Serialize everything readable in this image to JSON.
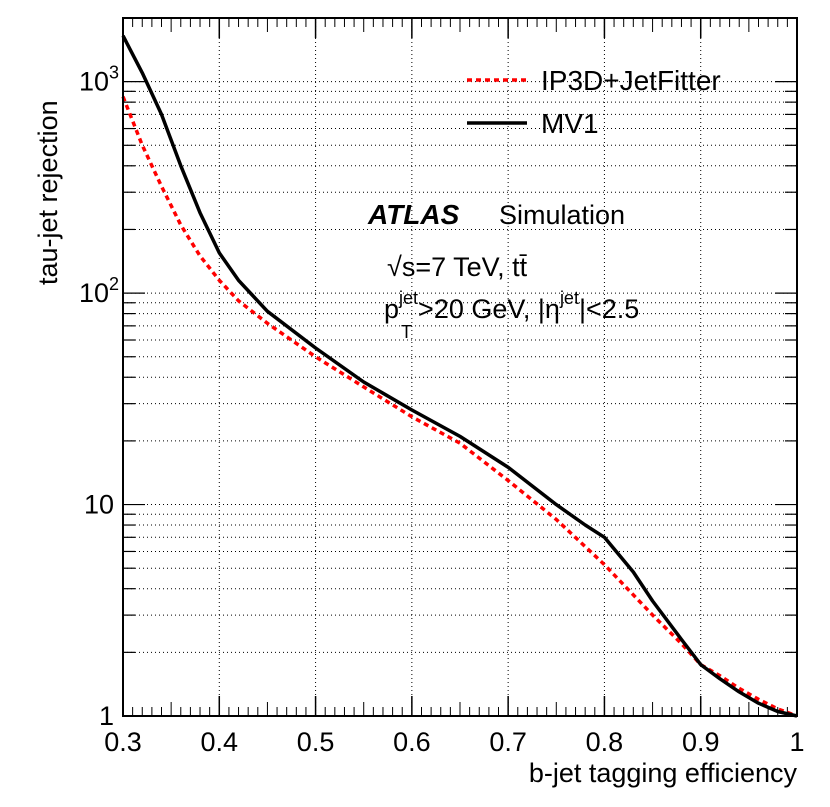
{
  "chart_data": {
    "type": "line",
    "title": "",
    "xlabel": "b-jet tagging efficiency",
    "ylabel": "tau-jet rejection",
    "xlim": [
      0.3,
      1.0
    ],
    "ylim": [
      1,
      2000
    ],
    "yscale": "log",
    "grid": true,
    "legend_position": "top-right",
    "x_ticks": [
      "0.3",
      "0.4",
      "0.5",
      "0.6",
      "0.7",
      "0.8",
      "0.9",
      "1"
    ],
    "y_ticks": [
      {
        "value": 1,
        "label": "1",
        "exp": ""
      },
      {
        "value": 10,
        "label": "10",
        "exp": ""
      },
      {
        "value": 100,
        "label": "10",
        "exp": "2"
      },
      {
        "value": 1000,
        "label": "10",
        "exp": "3"
      }
    ],
    "series": [
      {
        "name": "IP3D+JetFitter",
        "style": "dashed",
        "color": "#ff0000",
        "x": [
          0.3,
          0.32,
          0.34,
          0.36,
          0.38,
          0.4,
          0.42,
          0.45,
          0.5,
          0.55,
          0.6,
          0.65,
          0.7,
          0.75,
          0.8,
          0.85,
          0.88,
          0.9,
          0.92,
          0.94,
          0.96,
          0.98,
          1.0
        ],
        "y": [
          850,
          500,
          320,
          210,
          150,
          115,
          92,
          72,
          50,
          36,
          26,
          19.5,
          13,
          8.5,
          5.2,
          3.0,
          2.2,
          1.75,
          1.55,
          1.35,
          1.2,
          1.08,
          1.0
        ]
      },
      {
        "name": "MV1",
        "style": "solid",
        "color": "#000000",
        "x": [
          0.3,
          0.32,
          0.34,
          0.36,
          0.38,
          0.4,
          0.42,
          0.45,
          0.5,
          0.55,
          0.6,
          0.65,
          0.7,
          0.75,
          0.78,
          0.8,
          0.83,
          0.85,
          0.88,
          0.9,
          0.92,
          0.94,
          0.96,
          0.98,
          1.0
        ],
        "y": [
          1650,
          1100,
          700,
          400,
          240,
          155,
          115,
          82,
          55,
          38,
          28,
          21,
          15,
          10,
          8,
          7,
          4.8,
          3.5,
          2.3,
          1.75,
          1.5,
          1.3,
          1.15,
          1.05,
          1.0
        ]
      }
    ],
    "annotations": {
      "atlas": "ATLAS",
      "simulation": "Simulation",
      "energy": "√s=7 TeV, t",
      "energy_ttbar": "t̄",
      "cuts_p": "p",
      "cuts_p_sup": "jet",
      "cuts_p_sub": "T",
      "cuts_mid": ">20 GeV, |η",
      "cuts_eta_sup": "jet",
      "cuts_end": "|<2.5"
    }
  }
}
